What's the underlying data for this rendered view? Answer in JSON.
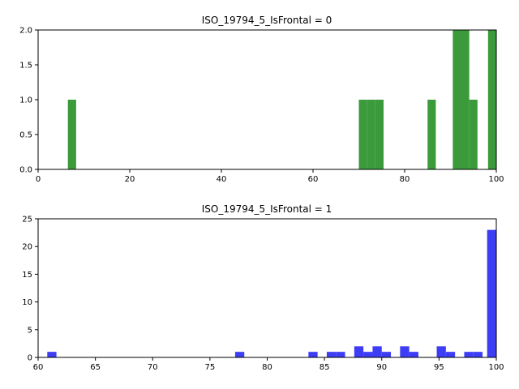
{
  "chart_data": [
    {
      "type": "bar",
      "title": "ISO_19794_5_IsFrontal = 0",
      "xlabel": "",
      "ylabel": "",
      "xlim": [
        0,
        100
      ],
      "ylim": [
        0,
        2.0
      ],
      "xticks": [
        "0",
        "20",
        "40",
        "60",
        "80",
        "100"
      ],
      "yticks": [
        "0.0",
        "0.5",
        "1.0",
        "1.5",
        "2.0"
      ],
      "color": "#3b9b3b",
      "bin_width": 1.8,
      "bins": [
        {
          "x": 6.5,
          "value": 1
        },
        {
          "x": 70.0,
          "value": 1
        },
        {
          "x": 71.8,
          "value": 1
        },
        {
          "x": 73.6,
          "value": 1
        },
        {
          "x": 85.0,
          "value": 1
        },
        {
          "x": 90.5,
          "value": 2
        },
        {
          "x": 92.3,
          "value": 2
        },
        {
          "x": 94.1,
          "value": 1
        },
        {
          "x": 98.2,
          "value": 2
        }
      ]
    },
    {
      "type": "bar",
      "title": "ISO_19794_5_IsFrontal = 1",
      "xlabel": "",
      "ylabel": "",
      "xlim": [
        60,
        100
      ],
      "ylim": [
        0,
        25
      ],
      "xticks": [
        "60",
        "65",
        "70",
        "75",
        "80",
        "85",
        "90",
        "95",
        "100"
      ],
      "yticks": [
        "0",
        "5",
        "10",
        "15",
        "20",
        "25"
      ],
      "color": "#3d3df5",
      "bin_width": 0.8,
      "bins": [
        {
          "x": 60.8,
          "value": 1
        },
        {
          "x": 77.2,
          "value": 1
        },
        {
          "x": 83.6,
          "value": 1
        },
        {
          "x": 85.2,
          "value": 1
        },
        {
          "x": 86.0,
          "value": 1
        },
        {
          "x": 87.6,
          "value": 2
        },
        {
          "x": 88.4,
          "value": 1
        },
        {
          "x": 89.2,
          "value": 2
        },
        {
          "x": 90.0,
          "value": 1
        },
        {
          "x": 91.6,
          "value": 2
        },
        {
          "x": 92.4,
          "value": 1
        },
        {
          "x": 94.8,
          "value": 2
        },
        {
          "x": 95.6,
          "value": 1
        },
        {
          "x": 97.2,
          "value": 1
        },
        {
          "x": 98.0,
          "value": 1
        },
        {
          "x": 99.2,
          "value": 23
        }
      ]
    }
  ]
}
